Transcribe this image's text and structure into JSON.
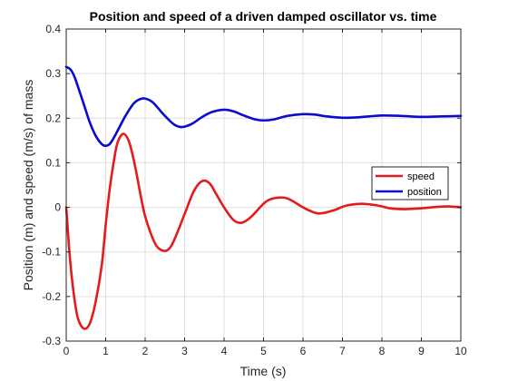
{
  "chart_data": {
    "type": "line",
    "title": "Position and speed of a driven damped oscillator vs. time",
    "xlabel": "Time (s)",
    "ylabel": "Position (m) and speed (m/s) of mass",
    "xlim": [
      0,
      10
    ],
    "ylim": [
      -0.3,
      0.4
    ],
    "xticks": [
      0,
      1,
      2,
      3,
      4,
      5,
      6,
      7,
      8,
      9,
      10
    ],
    "yticks": [
      -0.3,
      -0.2,
      -0.1,
      0,
      0.1,
      0.2,
      0.3,
      0.4
    ],
    "xtick_labels": [
      "0",
      "1",
      "2",
      "3",
      "4",
      "5",
      "6",
      "7",
      "8",
      "9",
      "10"
    ],
    "ytick_labels": [
      "-0.3",
      "-0.2",
      "-0.1",
      "0",
      "0.1",
      "0.2",
      "0.3",
      "0.4"
    ],
    "grid": true,
    "legend_position": "right",
    "series": [
      {
        "name": "speed",
        "color": "#e41a1c",
        "points": [
          [
            0,
            0
          ],
          [
            0.1,
            -0.12
          ],
          [
            0.2,
            -0.2
          ],
          [
            0.3,
            -0.25
          ],
          [
            0.45,
            -0.272
          ],
          [
            0.6,
            -0.26
          ],
          [
            0.75,
            -0.21
          ],
          [
            0.9,
            -0.13
          ],
          [
            1.0,
            -0.04
          ],
          [
            1.1,
            0.04
          ],
          [
            1.2,
            0.1
          ],
          [
            1.3,
            0.145
          ],
          [
            1.45,
            0.165
          ],
          [
            1.6,
            0.145
          ],
          [
            1.75,
            0.09
          ],
          [
            1.9,
            0.02
          ],
          [
            2.0,
            -0.02
          ],
          [
            2.15,
            -0.06
          ],
          [
            2.3,
            -0.088
          ],
          [
            2.5,
            -0.098
          ],
          [
            2.65,
            -0.088
          ],
          [
            2.8,
            -0.06
          ],
          [
            3.0,
            -0.015
          ],
          [
            3.2,
            0.03
          ],
          [
            3.35,
            0.052
          ],
          [
            3.5,
            0.06
          ],
          [
            3.65,
            0.052
          ],
          [
            3.8,
            0.03
          ],
          [
            4.0,
            0.0
          ],
          [
            4.2,
            -0.025
          ],
          [
            4.35,
            -0.034
          ],
          [
            4.5,
            -0.033
          ],
          [
            4.7,
            -0.02
          ],
          [
            5.0,
            0.008
          ],
          [
            5.2,
            0.019
          ],
          [
            5.5,
            0.022
          ],
          [
            5.7,
            0.016
          ],
          [
            6.0,
            0.0
          ],
          [
            6.3,
            -0.012
          ],
          [
            6.5,
            -0.013
          ],
          [
            6.8,
            -0.006
          ],
          [
            7.1,
            0.004
          ],
          [
            7.5,
            0.008
          ],
          [
            7.9,
            0.004
          ],
          [
            8.2,
            -0.002
          ],
          [
            8.6,
            -0.004
          ],
          [
            9.0,
            -0.002
          ],
          [
            9.4,
            0.001
          ],
          [
            9.7,
            0.002
          ],
          [
            10.0,
            0.0
          ]
        ]
      },
      {
        "name": "position",
        "color": "#0a0ad2",
        "points": [
          [
            0,
            0.315
          ],
          [
            0.1,
            0.31
          ],
          [
            0.2,
            0.295
          ],
          [
            0.3,
            0.27
          ],
          [
            0.45,
            0.23
          ],
          [
            0.6,
            0.19
          ],
          [
            0.75,
            0.16
          ],
          [
            0.9,
            0.142
          ],
          [
            1.0,
            0.138
          ],
          [
            1.1,
            0.142
          ],
          [
            1.2,
            0.155
          ],
          [
            1.35,
            0.18
          ],
          [
            1.5,
            0.205
          ],
          [
            1.7,
            0.232
          ],
          [
            1.85,
            0.242
          ],
          [
            2.0,
            0.244
          ],
          [
            2.2,
            0.235
          ],
          [
            2.45,
            0.21
          ],
          [
            2.7,
            0.188
          ],
          [
            2.85,
            0.181
          ],
          [
            3.0,
            0.181
          ],
          [
            3.2,
            0.188
          ],
          [
            3.45,
            0.203
          ],
          [
            3.7,
            0.214
          ],
          [
            4.0,
            0.219
          ],
          [
            4.25,
            0.215
          ],
          [
            4.5,
            0.206
          ],
          [
            4.8,
            0.197
          ],
          [
            5.0,
            0.195
          ],
          [
            5.25,
            0.197
          ],
          [
            5.6,
            0.205
          ],
          [
            6.0,
            0.209
          ],
          [
            6.3,
            0.208
          ],
          [
            6.6,
            0.204
          ],
          [
            7.0,
            0.201
          ],
          [
            7.4,
            0.202
          ],
          [
            8.0,
            0.206
          ],
          [
            8.5,
            0.205
          ],
          [
            9.0,
            0.203
          ],
          [
            9.5,
            0.204
          ],
          [
            10.0,
            0.205
          ]
        ]
      }
    ]
  }
}
